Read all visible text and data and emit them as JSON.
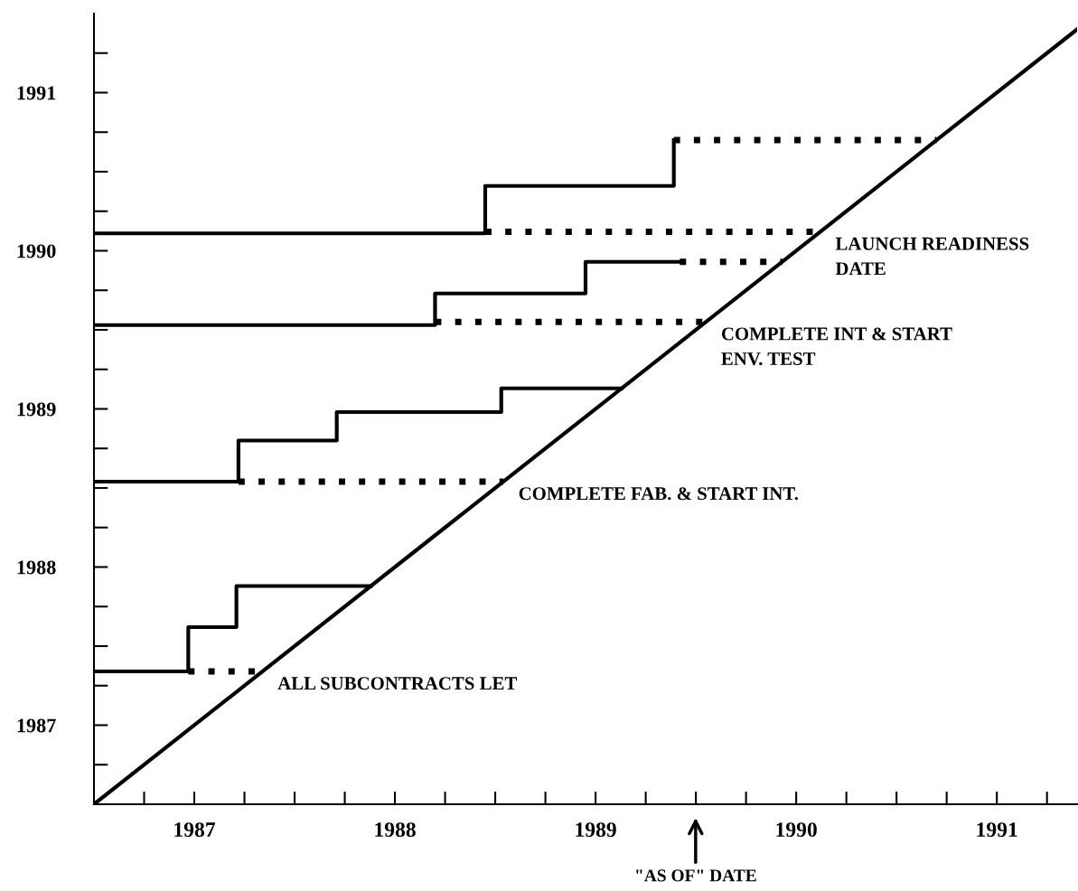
{
  "chart_data": {
    "type": "step",
    "xlim": [
      1987,
      1991.9
    ],
    "ylim": [
      1987,
      1992
    ],
    "xticks": [
      {
        "value": 1987.25,
        "label": null
      },
      {
        "value": 1987.5,
        "label": "1987"
      },
      {
        "value": 1987.75,
        "label": null
      },
      {
        "value": 1988.0,
        "label": null
      },
      {
        "value": 1988.25,
        "label": null
      },
      {
        "value": 1988.5,
        "label": "1988"
      },
      {
        "value": 1988.75,
        "label": null
      },
      {
        "value": 1989.0,
        "label": null
      },
      {
        "value": 1989.25,
        "label": null
      },
      {
        "value": 1989.5,
        "label": "1989"
      },
      {
        "value": 1989.75,
        "label": null
      },
      {
        "value": 1990.0,
        "label": null
      },
      {
        "value": 1990.25,
        "label": null
      },
      {
        "value": 1990.5,
        "label": "1990"
      },
      {
        "value": 1990.75,
        "label": null
      },
      {
        "value": 1991.0,
        "label": null
      },
      {
        "value": 1991.25,
        "label": null
      },
      {
        "value": 1991.5,
        "label": "1991"
      },
      {
        "value": 1991.75,
        "label": null
      }
    ],
    "yticks": [
      {
        "value": 1987.25,
        "label": null
      },
      {
        "value": 1987.5,
        "label": "1987"
      },
      {
        "value": 1987.75,
        "label": null
      },
      {
        "value": 1988.0,
        "label": null
      },
      {
        "value": 1988.25,
        "label": null
      },
      {
        "value": 1988.5,
        "label": "1988"
      },
      {
        "value": 1988.75,
        "label": null
      },
      {
        "value": 1989.0,
        "label": null
      },
      {
        "value": 1989.25,
        "label": null
      },
      {
        "value": 1989.5,
        "label": "1989"
      },
      {
        "value": 1989.75,
        "label": null
      },
      {
        "value": 1990.0,
        "label": null
      },
      {
        "value": 1990.25,
        "label": null
      },
      {
        "value": 1990.5,
        "label": "1990"
      },
      {
        "value": 1990.75,
        "label": null
      },
      {
        "value": 1991.0,
        "label": null
      },
      {
        "value": 1991.25,
        "label": null
      },
      {
        "value": 1991.5,
        "label": "1991"
      },
      {
        "value": 1991.75,
        "label": null
      }
    ],
    "grid": false,
    "legend": false,
    "series": [
      {
        "type": "line",
        "color": "#000000",
        "line_style": "solid",
        "x": [
          1987.0,
          1991.9
        ],
        "values": [
          1987.0,
          1991.9
        ]
      },
      {
        "color": "#000000",
        "line_style": "solid",
        "x": [
          1987.0,
          1987.47,
          1987.71,
          1988.38
        ],
        "values": [
          1987.84,
          1988.12,
          1988.38,
          1988.38
        ]
      },
      {
        "type": "line",
        "color": "#000000",
        "line_style": "dotted",
        "x": [
          1987.47,
          1987.84
        ],
        "values": [
          1987.84,
          1987.84
        ]
      },
      {
        "color": "#000000",
        "line_style": "solid",
        "x": [
          1987.0,
          1987.72,
          1988.21,
          1989.03,
          1989.63
        ],
        "values": [
          1989.04,
          1989.3,
          1989.48,
          1989.63,
          1989.63
        ]
      },
      {
        "type": "line",
        "color": "#000000",
        "line_style": "dotted",
        "x": [
          1987.72,
          1989.04
        ],
        "values": [
          1989.04,
          1989.04
        ]
      },
      {
        "color": "#000000",
        "line_style": "solid",
        "x": [
          1987.0,
          1988.7,
          1989.45,
          1989.92
        ],
        "values": [
          1990.03,
          1990.23,
          1990.43,
          1990.43
        ]
      },
      {
        "type": "line",
        "color": "#000000",
        "line_style": "dotted",
        "x": [
          1989.92,
          1990.43
        ],
        "values": [
          1990.43,
          1990.43
        ]
      },
      {
        "type": "line",
        "color": "#000000",
        "line_style": "dotted",
        "x": [
          1988.7,
          1990.05
        ],
        "values": [
          1990.05,
          1990.05
        ]
      },
      {
        "color": "#000000",
        "line_style": "solid",
        "x": [
          1987.0,
          1988.95,
          1989.89
        ],
        "values": [
          1990.61,
          1990.91,
          1991.2
        ]
      },
      {
        "type": "line",
        "color": "#000000",
        "line_style": "dotted",
        "x": [
          1989.89,
          1991.2
        ],
        "values": [
          1991.2,
          1991.2
        ]
      },
      {
        "type": "line",
        "color": "#000000",
        "line_style": "dotted",
        "x": [
          1988.95,
          1990.62
        ],
        "values": [
          1990.62,
          1990.62
        ]
      }
    ],
    "annotations": [
      {
        "text": "ALL SUBCONTRACTS LET",
        "x": 1987.84,
        "y": 1987.84
      },
      {
        "text": "COMPLETE FAB. & START INT.",
        "x": 1989.04,
        "y": 1989.04
      },
      {
        "text": "COMPLETE INT & START\nENV. TEST",
        "x": 1990.05,
        "y": 1990.05
      },
      {
        "text": "LAUNCH READINESS\nDATE",
        "x": 1990.62,
        "y": 1990.62
      }
    ],
    "xlabel": "\"AS OF\" DATE"
  }
}
